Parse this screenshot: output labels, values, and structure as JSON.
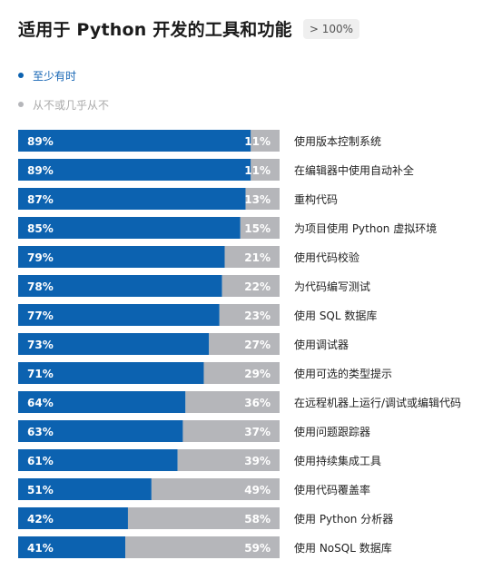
{
  "header": {
    "title": "适用于 Python 开发的工具和功能",
    "badge": "> 100%"
  },
  "legend": {
    "items": [
      {
        "label": "至少有时",
        "color": "#0c62b0"
      },
      {
        "label": "从不或几乎从不",
        "color": "#b5b6ba"
      }
    ]
  },
  "chart_data": {
    "type": "bar",
    "orientation": "horizontal",
    "stacked": true,
    "categories": [
      "使用版本控制系统",
      "在编辑器中使用自动补全",
      "重构代码",
      "为项目使用 Python 虚拟环境",
      "使用代码校验",
      "为代码编写测试",
      "使用 SQL 数据库",
      "使用调试器",
      "使用可选的类型提示",
      "在远程机器上运行/调试或编辑代码",
      "使用问题跟踪器",
      "使用持续集成工具",
      "使用代码覆盖率",
      "使用 Python 分析器",
      "使用 NoSQL 数据库"
    ],
    "series": [
      {
        "name": "至少有时",
        "values": [
          89,
          89,
          87,
          85,
          79,
          78,
          77,
          73,
          71,
          64,
          63,
          61,
          51,
          42,
          41
        ]
      },
      {
        "name": "从不或几乎从不",
        "values": [
          11,
          11,
          13,
          15,
          21,
          22,
          23,
          27,
          29,
          36,
          37,
          39,
          49,
          58,
          59
        ]
      }
    ],
    "value_suffix": "%",
    "xlim": [
      0,
      100
    ]
  }
}
